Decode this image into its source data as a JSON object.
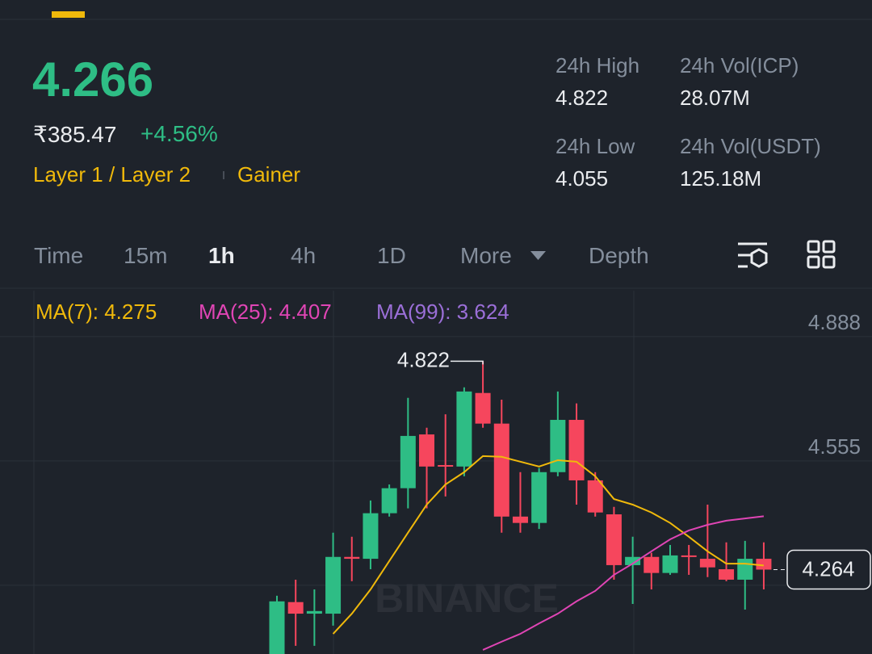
{
  "header": {
    "price": "4.266",
    "fiat": "₹385.47",
    "change": "+4.56%",
    "tags": [
      "Layer 1 / Layer 2",
      "Gainer"
    ],
    "stats": [
      {
        "label": "24h High",
        "value": "4.822"
      },
      {
        "label": "24h Vol(ICP)",
        "value": "28.07M"
      },
      {
        "label": "24h Low",
        "value": "4.055"
      },
      {
        "label": "24h Vol(USDT)",
        "value": "125.18M"
      }
    ]
  },
  "tabs": [
    "Time",
    "15m",
    "1h",
    "4h",
    "1D",
    "More",
    "Depth"
  ],
  "active_tab": 2,
  "chart_data": {
    "type": "candlestick",
    "watermark": "BINANCE",
    "up_color": "#2ebd85",
    "down_color": "#f6465d",
    "candles": [
      {
        "open": 4.027,
        "high": 4.194,
        "low": 4.017,
        "close": 4.179
      },
      {
        "open": 4.177,
        "high": 4.237,
        "low": 4.06,
        "close": 4.146
      },
      {
        "open": 4.146,
        "high": 4.211,
        "low": 4.06,
        "close": 4.153
      },
      {
        "open": 4.146,
        "high": 4.363,
        "low": 4.114,
        "close": 4.298
      },
      {
        "open": 4.298,
        "high": 4.352,
        "low": 4.233,
        "close": 4.293
      },
      {
        "open": 4.293,
        "high": 4.449,
        "low": 4.265,
        "close": 4.415
      },
      {
        "open": 4.415,
        "high": 4.492,
        "low": 4.406,
        "close": 4.482
      },
      {
        "open": 4.482,
        "high": 4.724,
        "low": 4.428,
        "close": 4.622
      },
      {
        "open": 4.626,
        "high": 4.644,
        "low": 4.428,
        "close": 4.54
      },
      {
        "open": 4.544,
        "high": 4.68,
        "low": 4.46,
        "close": 4.54
      },
      {
        "open": 4.54,
        "high": 4.752,
        "low": 4.514,
        "close": 4.741
      },
      {
        "open": 4.737,
        "high": 4.822,
        "low": 4.644,
        "close": 4.655
      },
      {
        "open": 4.655,
        "high": 4.719,
        "low": 4.363,
        "close": 4.406
      },
      {
        "open": 4.406,
        "high": 4.525,
        "low": 4.363,
        "close": 4.389
      },
      {
        "open": 4.389,
        "high": 4.536,
        "low": 4.373,
        "close": 4.525
      },
      {
        "open": 4.525,
        "high": 4.741,
        "low": 4.514,
        "close": 4.665
      },
      {
        "open": 4.665,
        "high": 4.709,
        "low": 4.438,
        "close": 4.503
      },
      {
        "open": 4.503,
        "high": 4.525,
        "low": 4.406,
        "close": 4.417
      },
      {
        "open": 4.412,
        "high": 4.432,
        "low": 4.237,
        "close": 4.276
      },
      {
        "open": 4.276,
        "high": 4.352,
        "low": 4.172,
        "close": 4.298
      },
      {
        "open": 4.298,
        "high": 4.309,
        "low": 4.211,
        "close": 4.255
      },
      {
        "open": 4.255,
        "high": 4.33,
        "low": 4.25,
        "close": 4.302
      },
      {
        "open": 4.302,
        "high": 4.33,
        "low": 4.25,
        "close": 4.298
      },
      {
        "open": 4.293,
        "high": 4.438,
        "low": 4.244,
        "close": 4.27
      },
      {
        "open": 4.265,
        "high": 4.337,
        "low": 4.233,
        "close": 4.237
      },
      {
        "open": 4.237,
        "high": 4.341,
        "low": 4.157,
        "close": 4.293
      },
      {
        "open": 4.293,
        "high": 4.337,
        "low": 4.211,
        "close": 4.264
      }
    ],
    "series": [
      {
        "name": "MA(7): 4.275",
        "color": "#f0b90b",
        "values": [
          null,
          null,
          null,
          4.092,
          4.146,
          4.211,
          4.287,
          4.363,
          4.438,
          4.492,
          4.525,
          4.568,
          4.566,
          4.553,
          4.54,
          4.557,
          4.553,
          4.514,
          4.453,
          4.438,
          4.417,
          4.389,
          4.352,
          4.313,
          4.28,
          4.28,
          4.275
        ]
      },
      {
        "name": "MA(25): 4.407",
        "color": "#e045b5",
        "values": [
          null,
          null,
          null,
          null,
          null,
          null,
          null,
          null,
          null,
          null,
          null,
          4.049,
          4.071,
          4.092,
          4.12,
          4.146,
          4.179,
          4.207,
          4.25,
          4.28,
          4.313,
          4.345,
          4.369,
          4.384,
          4.395,
          4.401,
          4.407
        ]
      },
      {
        "name": "MA(99): 3.624",
        "color": "#9b6fd8",
        "values": [
          null,
          null,
          null,
          null,
          null,
          null,
          null,
          null,
          null,
          null,
          null,
          null,
          null,
          null,
          null,
          null,
          null,
          null,
          null,
          null,
          null,
          null,
          null,
          null,
          null,
          null,
          null
        ]
      }
    ],
    "ylim": [
      4.038,
      5.011
    ],
    "yticks": [
      4.888,
      4.555,
      4.222
    ],
    "grid": true
  }
}
